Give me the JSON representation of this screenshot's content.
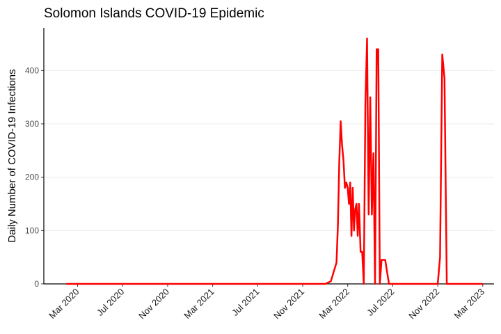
{
  "chart_data": {
    "type": "line",
    "title": "Solomon Islands COVID-19 Epidemic",
    "y_label": "Daily Number of COVID-19 Infections",
    "x": [
      "2020-02",
      "2022-01",
      "2022-01",
      "2022-02",
      "2022-02",
      "2022-02",
      "2022-02",
      "2022-02",
      "2022-02",
      "2022-02",
      "2022-02",
      "2022-03",
      "2022-03",
      "2022-03",
      "2022-03",
      "2022-03",
      "2022-03",
      "2022-03",
      "2022-03",
      "2022-03",
      "2022-04",
      "2022-04",
      "2022-04",
      "2022-04",
      "2022-04",
      "2022-04",
      "2022-04",
      "2022-05",
      "2022-05",
      "2022-05",
      "2022-05",
      "2022-05",
      "2022-05",
      "2022-05",
      "2022-06",
      "2022-06",
      "2022-06",
      "2022-07",
      "2022-10",
      "2022-11",
      "2022-11",
      "2022-11",
      "2022-11",
      "2022-11",
      "2022-12",
      "2023-03"
    ],
    "series": [
      {
        "color": "#ff0000",
        "values": [
          0,
          0,
          5,
          40,
          110,
          230,
          305,
          260,
          230,
          180,
          190,
          180,
          150,
          190,
          90,
          180,
          100,
          140,
          150,
          90,
          150,
          60,
          60,
          0,
          335,
          460,
          130,
          350,
          130,
          245,
          0,
          440,
          440,
          0,
          45,
          45,
          0,
          0,
          0,
          0,
          50,
          430,
          385,
          0,
          0,
          0
        ]
      }
    ],
    "xlim": [
      "2019-12",
      "2023-04"
    ],
    "xticks": [
      {
        "value": "2020-03",
        "label": "Mar 2020"
      },
      {
        "value": "2020-07",
        "label": "Jul 2020"
      },
      {
        "value": "2020-11",
        "label": "Nov 2020"
      },
      {
        "value": "2021-03",
        "label": "Mar 2021"
      },
      {
        "value": "2021-07",
        "label": "Jul 2021"
      },
      {
        "value": "2021-11",
        "label": "Nov 2021"
      },
      {
        "value": "2022-03",
        "label": "Mar 2022"
      },
      {
        "value": "2022-07",
        "label": "Jul 2022"
      },
      {
        "value": "2022-11",
        "label": "Nov 2022"
      },
      {
        "value": "2023-03",
        "label": "Mar 2023"
      }
    ],
    "ylim": [
      0,
      480
    ],
    "yticks": [
      0,
      100,
      200,
      300,
      400
    ],
    "grid": true
  }
}
